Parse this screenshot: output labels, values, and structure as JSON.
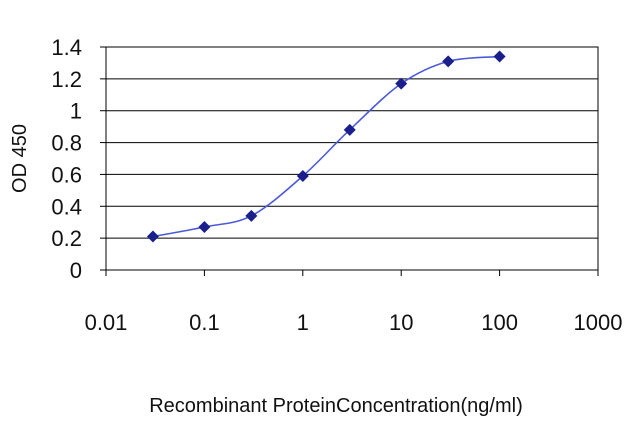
{
  "chart_data": {
    "type": "line",
    "title": "",
    "xlabel": "Recombinant ProteinConcentration(ng/ml)",
    "ylabel": "OD 450",
    "x_scale": "log",
    "xlim": [
      0.01,
      1000
    ],
    "ylim": [
      0,
      1.4
    ],
    "x_ticks": [
      "0.01",
      "0.1",
      "1",
      "10",
      "100",
      "1000"
    ],
    "y_ticks": [
      "0",
      "0.2",
      "0.4",
      "0.6",
      "0.8",
      "1",
      "1.2",
      "1.4"
    ],
    "grid": "horizontal",
    "legend": "none",
    "series": [
      {
        "x": [
          0.03,
          0.1,
          0.3,
          1,
          3,
          10,
          30,
          100
        ],
        "y": [
          0.21,
          0.27,
          0.34,
          0.59,
          0.88,
          1.17,
          1.31,
          1.34
        ],
        "color": "#4a5ad8",
        "marker_color": "#1a1f8c"
      }
    ]
  }
}
